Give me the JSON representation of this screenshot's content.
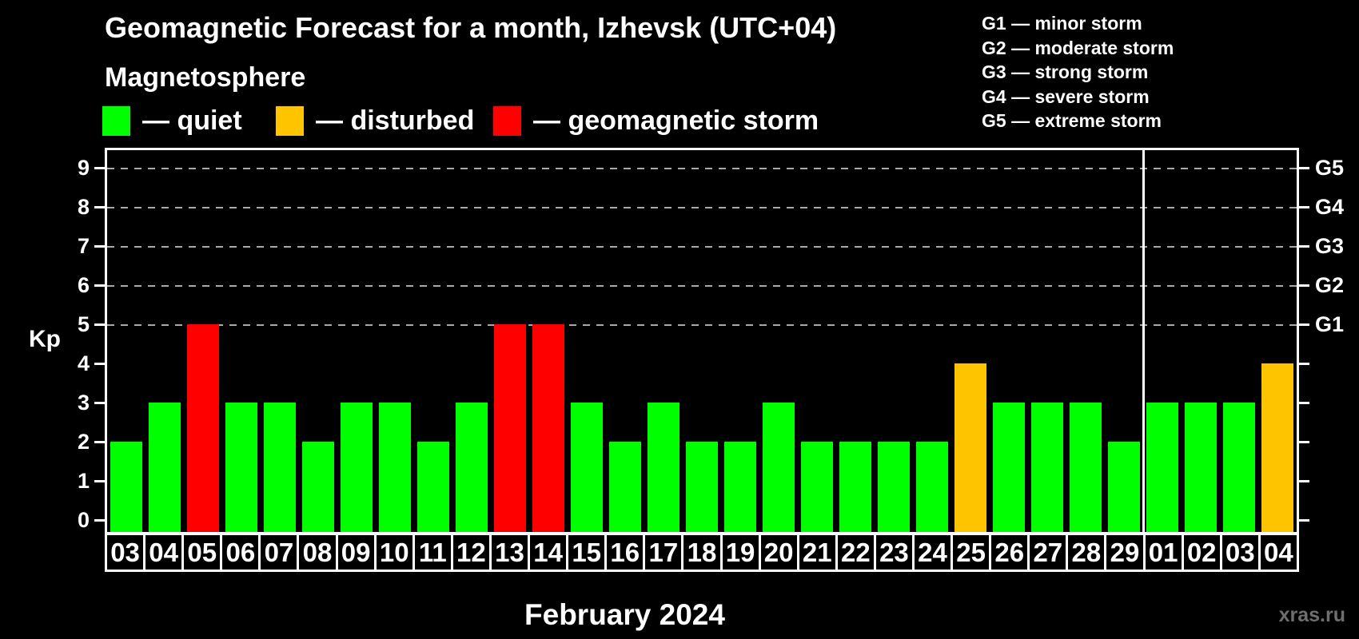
{
  "header": {
    "title": "Geomagnetic Forecast for a month, Izhevsk (UTC+04)",
    "subtitle": "Magnetosphere"
  },
  "status_legend": {
    "items": [
      {
        "name": "quiet",
        "label": "— quiet",
        "color": "#00ff00"
      },
      {
        "name": "disturbed",
        "label": "— disturbed",
        "color": "#ffc400"
      },
      {
        "name": "storm",
        "label": "— geomagnetic storm",
        "color": "#ff0000"
      }
    ]
  },
  "g_legend": {
    "items": [
      "G1 — minor storm",
      "G2 — moderate storm",
      "G3 — strong storm",
      "G4 — severe storm",
      "G5 — extreme storm"
    ]
  },
  "watermark": "xras.ru",
  "chart_data": {
    "type": "bar",
    "title": "Geomagnetic Forecast for a month, Izhevsk (UTC+04)",
    "xlabel": "February 2024",
    "ylabel": "Kp",
    "ylim": [
      -0.37,
      9.5
    ],
    "y_ticks": [
      0,
      1,
      2,
      3,
      4,
      5,
      6,
      7,
      8,
      9
    ],
    "gridlines_at": [
      5,
      6,
      7,
      8,
      9
    ],
    "grid": "dashed horizontal lines at storm levels only",
    "legend_position": "top",
    "right_axis_labels": [
      {
        "kp": 5,
        "g": "G1"
      },
      {
        "kp": 6,
        "g": "G2"
      },
      {
        "kp": 7,
        "g": "G3"
      },
      {
        "kp": 8,
        "g": "G4"
      },
      {
        "kp": 9,
        "g": "G5"
      }
    ],
    "month_separator_after_index": 26,
    "status_colors": {
      "quiet": "#00ff00",
      "disturbed": "#ffc400",
      "storm": "#ff0000"
    },
    "categories": [
      "03",
      "04",
      "05",
      "06",
      "07",
      "08",
      "09",
      "10",
      "11",
      "12",
      "13",
      "14",
      "15",
      "16",
      "17",
      "18",
      "19",
      "20",
      "21",
      "22",
      "23",
      "24",
      "25",
      "26",
      "27",
      "28",
      "29",
      "01",
      "02",
      "03",
      "04"
    ],
    "series": [
      {
        "name": "Kp forecast",
        "values": [
          2,
          3,
          5,
          3,
          3,
          2,
          3,
          3,
          2,
          3,
          5,
          5,
          3,
          2,
          3,
          2,
          2,
          3,
          2,
          2,
          2,
          2,
          4,
          3,
          3,
          3,
          2,
          3,
          3,
          3,
          4
        ],
        "statuses": [
          "quiet",
          "quiet",
          "storm",
          "quiet",
          "quiet",
          "quiet",
          "quiet",
          "quiet",
          "quiet",
          "quiet",
          "storm",
          "storm",
          "quiet",
          "quiet",
          "quiet",
          "quiet",
          "quiet",
          "quiet",
          "quiet",
          "quiet",
          "quiet",
          "quiet",
          "disturbed",
          "quiet",
          "quiet",
          "quiet",
          "quiet",
          "quiet",
          "quiet",
          "quiet",
          "disturbed"
        ]
      }
    ]
  }
}
